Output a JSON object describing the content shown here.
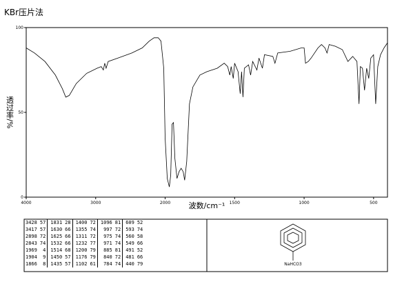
{
  "chart_data": {
    "type": "line",
    "title": "KBr压片法",
    "x_label": "波数/cm⁻¹",
    "y_label": "透过率/%",
    "xlim": [
      4000,
      400
    ],
    "x_scale_change_at": 2000,
    "ylim": [
      0,
      100
    ],
    "xticks": [
      4000,
      3000,
      2000,
      1500,
      1000,
      500
    ],
    "yticks": [
      0,
      50,
      100
    ],
    "x": [
      4000,
      3880,
      3730,
      3580,
      3480,
      3430,
      3380,
      3280,
      3130,
      2980,
      2920,
      2890,
      2870,
      2850,
      2820,
      2680,
      2480,
      2330,
      2230,
      2160,
      2100,
      2060,
      2020,
      2000,
      1985,
      1970,
      1960,
      1950,
      1940,
      1930,
      1915,
      1900,
      1885,
      1870,
      1860,
      1845,
      1825,
      1800,
      1750,
      1700,
      1625,
      1575,
      1550,
      1535,
      1525,
      1510,
      1500,
      1475,
      1460,
      1450,
      1440,
      1430,
      1400,
      1385,
      1370,
      1340,
      1325,
      1300,
      1285,
      1225,
      1210,
      1190,
      1100,
      1020,
      1000,
      990,
      970,
      950,
      900,
      875,
      850,
      835,
      820,
      775,
      725,
      685,
      650,
      620,
      605,
      595,
      580,
      565,
      550,
      535,
      520,
      500,
      485,
      470,
      450,
      425,
      400
    ],
    "series": [
      {
        "name": "spectrum",
        "color": "#000000",
        "values": [
          88,
          85,
          80,
          72,
          64,
          59,
          60,
          67,
          73,
          76,
          77,
          75,
          79,
          76,
          80,
          82,
          85,
          88,
          92,
          94,
          94,
          92,
          76,
          35,
          11,
          6,
          13,
          43,
          44,
          23,
          11,
          15,
          17,
          15,
          10,
          21,
          55,
          65,
          72,
          74,
          76,
          79,
          77,
          72,
          77,
          70,
          79,
          74,
          61,
          74,
          59,
          76,
          78,
          72,
          80,
          75,
          82,
          76,
          84,
          83,
          79,
          85,
          86,
          88,
          88,
          79,
          80,
          82,
          88,
          90,
          88,
          85,
          90,
          89,
          87,
          80,
          83,
          80,
          55,
          77,
          76,
          63,
          76,
          70,
          82,
          84,
          55,
          77,
          84,
          88,
          91
        ]
      }
    ]
  },
  "table": {
    "rows": [
      [
        3428,
        57,
        1831,
        28,
        1400,
        72,
        1096,
        81,
        609,
        52
      ],
      [
        3417,
        57,
        1630,
        66,
        1355,
        74,
        997,
        72,
        593,
        74
      ],
      [
        2898,
        72,
        1625,
        66,
        1311,
        72,
        975,
        74,
        560,
        58
      ],
      [
        2843,
        74,
        1532,
        66,
        1232,
        77,
        971,
        74,
        549,
        66
      ],
      [
        1969,
        4,
        1514,
        68,
        1200,
        79,
        885,
        81,
        491,
        52
      ],
      [
        1904,
        9,
        1450,
        57,
        1176,
        79,
        840,
        72,
        481,
        66
      ],
      [
        1866,
        8,
        1435,
        57,
        1102,
        61,
        784,
        74,
        440,
        79
      ]
    ]
  },
  "structure_label": "NaHCO3"
}
